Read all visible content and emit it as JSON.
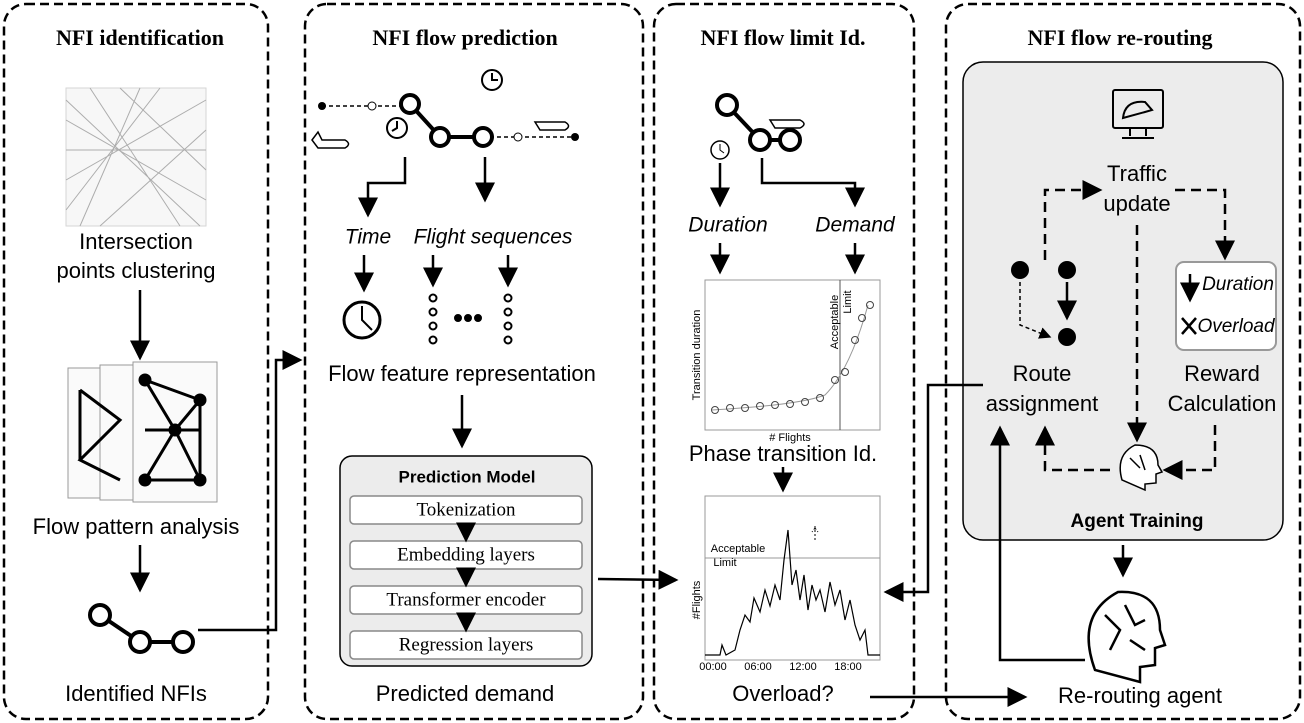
{
  "panels": [
    {
      "title": "NFI identification",
      "clustering": [
        "Intersection",
        "points clustering"
      ],
      "pattern": "Flow pattern analysis",
      "output": "Identified NFIs"
    },
    {
      "title": "NFI flow prediction",
      "time": "Time",
      "sequences": "Flight sequences",
      "feature": "Flow feature representation",
      "model": {
        "title": "Prediction Model",
        "layers": [
          "Tokenization",
          "Embedding layers",
          "Transformer encoder",
          "Regression layers"
        ]
      },
      "output": "Predicted demand"
    },
    {
      "title": "NFI flow limit Id.",
      "duration": "Duration",
      "demand": "Demand",
      "phase_chart": {
        "ylabel": "Transition duration",
        "xlabel": "# Flights",
        "limit": [
          "Acceptable",
          "Limit"
        ]
      },
      "phase": "Phase transition Id.",
      "load_chart": {
        "ylabel": "#Flights",
        "limit": [
          "Acceptable",
          "Limit"
        ],
        "xticks": [
          "00:00",
          "06:00",
          "12:00",
          "18:00"
        ]
      },
      "output": "Overload?"
    },
    {
      "title": "NFI flow re-routing",
      "traffic": [
        "Traffic",
        "update"
      ],
      "reward_terms": [
        "Duration",
        "Overload"
      ],
      "route": [
        "Route",
        "assignment"
      ],
      "reward": [
        "Reward",
        "Calculation"
      ],
      "training": "Agent Training",
      "output": "Re-routing agent"
    }
  ]
}
